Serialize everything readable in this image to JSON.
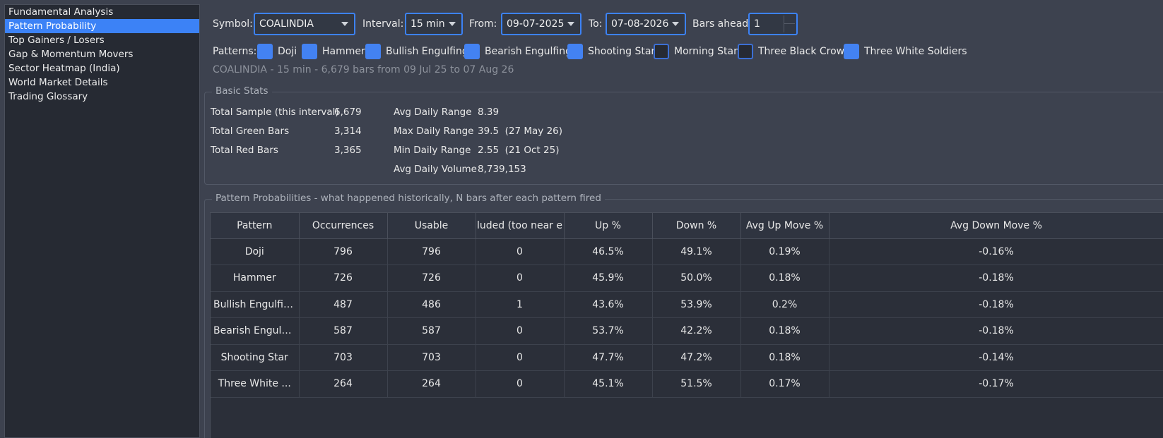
{
  "sidebar": {
    "items": [
      {
        "label": "Fundamental Analysis"
      },
      {
        "label": "Pattern Probability"
      },
      {
        "label": "Top Gainers / Losers"
      },
      {
        "label": "Gap & Momentum Movers"
      },
      {
        "label": "Sector Heatmap (India)"
      },
      {
        "label": "World Market Details"
      },
      {
        "label": "Trading Glossary"
      }
    ],
    "active_index": 1
  },
  "toolbar": {
    "symbol_label": "Symbol:",
    "symbol_value": "COALINDIA",
    "interval_label": "Interval:",
    "interval_value": "15 min",
    "from_label": "From:",
    "from_value": "09-07-2025",
    "to_label": "To:",
    "to_value": "07-08-2026",
    "bars_ahead_label": "Bars ahead:",
    "bars_ahead_value": "1"
  },
  "patterns": {
    "label": "Patterns:",
    "items": [
      {
        "label": "Doji",
        "checked": true
      },
      {
        "label": "Hammer",
        "checked": true
      },
      {
        "label": "Bullish Engulfing",
        "checked": true
      },
      {
        "label": "Bearish Engulfing",
        "checked": true
      },
      {
        "label": "Shooting Star",
        "checked": true
      },
      {
        "label": "Morning Star",
        "checked": false
      },
      {
        "label": "Three Black Crows",
        "checked": false
      },
      {
        "label": "Three White Soldiers",
        "checked": true
      }
    ]
  },
  "summary": "COALINDIA - 15 min - 6,679 bars from 09 Jul 25 to 07 Aug 26",
  "basic_stats": {
    "title": "Basic Stats",
    "total_sample_label": "Total Sample (this interval)",
    "total_sample_value": "6,679",
    "green_label": "Total Green Bars",
    "green_value": "3,314",
    "red_label": "Total Red Bars",
    "red_value": "3,365",
    "avg_range_label": "Avg Daily Range",
    "avg_range_value": "8.39",
    "max_range_label": "Max Daily Range",
    "max_range_value": "39.5  (27 May 26)",
    "min_range_label": "Min Daily Range",
    "min_range_value": "2.55  (21 Oct 25)",
    "avg_volume_label": "Avg Daily Volume",
    "avg_volume_value": "8,739,153"
  },
  "probabilities": {
    "title": "Pattern Probabilities - what happened historically, N bars after each pattern fired",
    "columns": [
      "Pattern",
      "Occurrences",
      "Usable",
      "luded (too near e",
      "Up %",
      "Down %",
      "Avg Up Move %",
      "Avg Down Move %"
    ],
    "rows": [
      [
        "Doji",
        "796",
        "796",
        "0",
        "46.5%",
        "49.1%",
        "0.19%",
        "-0.16%"
      ],
      [
        "Hammer",
        "726",
        "726",
        "0",
        "45.9%",
        "50.0%",
        "0.18%",
        "-0.18%"
      ],
      [
        "Bullish Engulfing",
        "487",
        "486",
        "1",
        "43.6%",
        "53.9%",
        "0.2%",
        "-0.18%"
      ],
      [
        "Bearish Engulfing",
        "587",
        "587",
        "0",
        "53.7%",
        "42.2%",
        "0.18%",
        "-0.18%"
      ],
      [
        "Shooting Star",
        "703",
        "703",
        "0",
        "47.7%",
        "47.2%",
        "0.18%",
        "-0.14%"
      ],
      [
        "Three White ...",
        "264",
        "264",
        "0",
        "45.1%",
        "51.5%",
        "0.17%",
        "-0.17%"
      ]
    ]
  },
  "colors": {
    "accent": "#3c82f6",
    "background": "#3d424f",
    "panel": "#262a33",
    "table_bg": "#2b2f39"
  }
}
